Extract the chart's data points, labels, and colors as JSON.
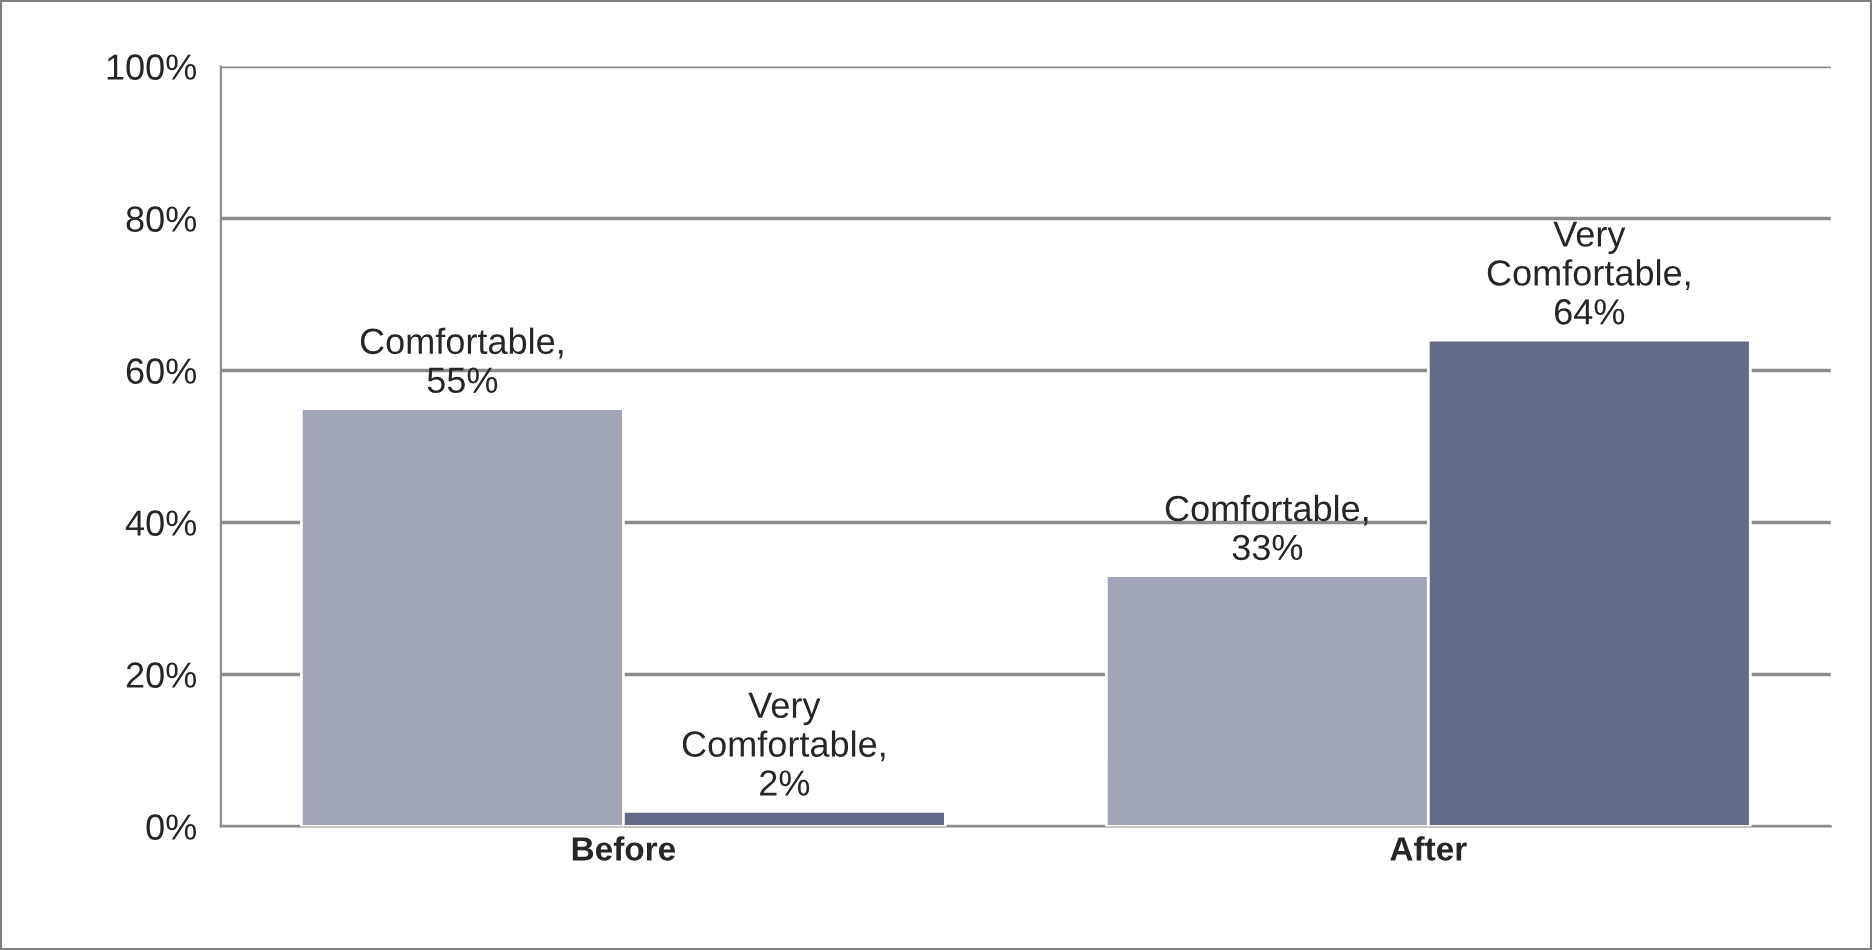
{
  "chart_data": {
    "type": "bar",
    "categories": [
      "Before",
      "After"
    ],
    "series": [
      {
        "color": "#a0a5b8",
        "values": [
          55,
          33
        ],
        "value_labels": [
          "Comfortable,\n55%",
          "Comfortable,\n33%"
        ]
      },
      {
        "color": "#636a85",
        "values": [
          2,
          64
        ],
        "value_labels": [
          "Very\nComfortable,\n2%",
          "Very\nComfortable,\n64%"
        ]
      }
    ],
    "ylim": [
      0,
      100
    ],
    "yticks": [
      {
        "value": 0,
        "label": "0%"
      },
      {
        "value": 20,
        "label": "20%"
      },
      {
        "value": 40,
        "label": "40%"
      },
      {
        "value": 60,
        "label": "60%"
      },
      {
        "value": 80,
        "label": "80%"
      },
      {
        "value": 100,
        "label": "100%"
      }
    ],
    "grid": "y"
  }
}
